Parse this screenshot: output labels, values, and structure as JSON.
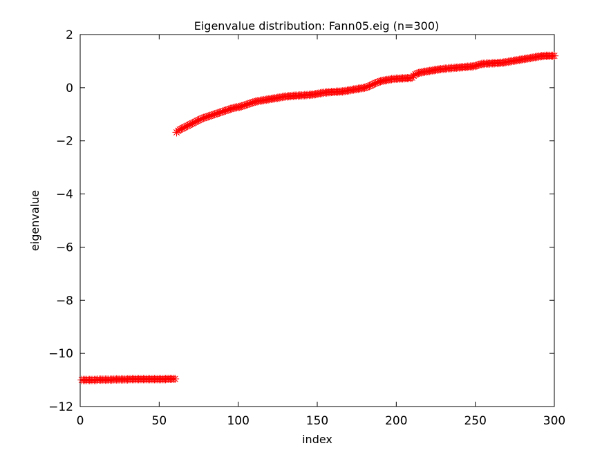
{
  "chart_data": {
    "type": "scatter",
    "title": "Eigenvalue distribution: Fann05.eig (n=300)",
    "xlabel": "index",
    "ylabel": "eigenvalue",
    "xlim": [
      0,
      300
    ],
    "ylim": [
      -12,
      2
    ],
    "xticks": [
      0,
      50,
      100,
      150,
      200,
      250,
      300
    ],
    "yticks": [
      -12,
      -10,
      -8,
      -6,
      -4,
      -2,
      0,
      2
    ],
    "xtick_labels": [
      "0",
      "50",
      "100",
      "150",
      "200",
      "250",
      "300"
    ],
    "ytick_labels": [
      "−12",
      "−10",
      "−8",
      "−6",
      "−4",
      "−2",
      "0",
      "2"
    ],
    "grid": false,
    "legend": "none",
    "marker": "asterisk",
    "color": "#ff0000",
    "series": [
      {
        "x_start": 1,
        "x_step": 1,
        "values": [
          -11.0,
          -11.0,
          -11.0,
          -11.0,
          -11.0,
          -11.0,
          -11.0,
          -11.0,
          -11.0,
          -11.0,
          -10.99,
          -10.99,
          -10.99,
          -10.99,
          -10.99,
          -10.99,
          -10.99,
          -10.99,
          -10.99,
          -10.99,
          -10.98,
          -10.98,
          -10.98,
          -10.98,
          -10.98,
          -10.98,
          -10.98,
          -10.98,
          -10.98,
          -10.98,
          -10.97,
          -10.97,
          -10.97,
          -10.97,
          -10.97,
          -10.97,
          -10.97,
          -10.97,
          -10.97,
          -10.97,
          -10.97,
          -10.97,
          -10.97,
          -10.97,
          -10.97,
          -10.97,
          -10.97,
          -10.97,
          -10.97,
          -10.97,
          -10.97,
          -10.97,
          -10.97,
          -10.97,
          -10.96,
          -10.96,
          -10.96,
          -10.96,
          -10.96,
          -10.96,
          -1.68,
          -1.62,
          -1.58,
          -1.55,
          -1.52,
          -1.49,
          -1.46,
          -1.43,
          -1.4,
          -1.37,
          -1.34,
          -1.31,
          -1.28,
          -1.25,
          -1.22,
          -1.19,
          -1.16,
          -1.14,
          -1.12,
          -1.1,
          -1.08,
          -1.06,
          -1.04,
          -1.02,
          -1.0,
          -0.98,
          -0.96,
          -0.94,
          -0.92,
          -0.9,
          -0.88,
          -0.86,
          -0.84,
          -0.82,
          -0.8,
          -0.78,
          -0.76,
          -0.75,
          -0.74,
          -0.73,
          -0.72,
          -0.7,
          -0.68,
          -0.66,
          -0.64,
          -0.62,
          -0.6,
          -0.58,
          -0.56,
          -0.54,
          -0.52,
          -0.51,
          -0.5,
          -0.49,
          -0.48,
          -0.47,
          -0.46,
          -0.45,
          -0.44,
          -0.43,
          -0.42,
          -0.41,
          -0.4,
          -0.39,
          -0.38,
          -0.37,
          -0.36,
          -0.35,
          -0.34,
          -0.33,
          -0.33,
          -0.32,
          -0.32,
          -0.31,
          -0.31,
          -0.3,
          -0.3,
          -0.3,
          -0.29,
          -0.29,
          -0.29,
          -0.28,
          -0.28,
          -0.27,
          -0.27,
          -0.26,
          -0.26,
          -0.25,
          -0.24,
          -0.23,
          -0.22,
          -0.21,
          -0.2,
          -0.19,
          -0.18,
          -0.18,
          -0.17,
          -0.17,
          -0.16,
          -0.16,
          -0.16,
          -0.15,
          -0.15,
          -0.15,
          -0.14,
          -0.14,
          -0.13,
          -0.12,
          -0.11,
          -0.1,
          -0.09,
          -0.08,
          -0.07,
          -0.06,
          -0.05,
          -0.04,
          -0.03,
          -0.02,
          -0.01,
          0.0,
          0.02,
          0.04,
          0.06,
          0.09,
          0.12,
          0.15,
          0.18,
          0.2,
          0.22,
          0.24,
          0.26,
          0.27,
          0.28,
          0.29,
          0.3,
          0.31,
          0.32,
          0.33,
          0.33,
          0.34,
          0.34,
          0.34,
          0.35,
          0.35,
          0.35,
          0.36,
          0.36,
          0.36,
          0.37,
          0.38,
          0.45,
          0.5,
          0.53,
          0.55,
          0.57,
          0.58,
          0.59,
          0.6,
          0.61,
          0.62,
          0.63,
          0.64,
          0.65,
          0.66,
          0.67,
          0.68,
          0.69,
          0.7,
          0.7,
          0.71,
          0.72,
          0.72,
          0.73,
          0.73,
          0.74,
          0.74,
          0.75,
          0.75,
          0.76,
          0.76,
          0.77,
          0.77,
          0.78,
          0.78,
          0.79,
          0.79,
          0.8,
          0.8,
          0.81,
          0.82,
          0.84,
          0.86,
          0.88,
          0.89,
          0.9,
          0.9,
          0.91,
          0.91,
          0.91,
          0.92,
          0.92,
          0.92,
          0.93,
          0.93,
          0.93,
          0.94,
          0.94,
          0.95,
          0.96,
          0.97,
          0.98,
          0.99,
          1.0,
          1.01,
          1.02,
          1.03,
          1.04,
          1.05,
          1.06,
          1.07,
          1.08,
          1.09,
          1.1,
          1.11,
          1.12,
          1.13,
          1.14,
          1.15,
          1.16,
          1.17,
          1.18,
          1.19,
          1.19,
          1.2,
          1.2,
          1.2,
          1.2,
          1.2,
          1.2,
          1.2
        ]
      }
    ]
  }
}
